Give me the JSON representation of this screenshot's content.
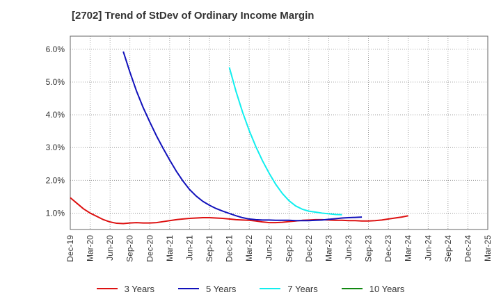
{
  "title": "[2702]  Trend of StDev of Ordinary Income Margin",
  "chart_data": {
    "type": "line",
    "title": "[2702]  Trend of StDev of Ordinary Income Margin",
    "xlabel": "",
    "ylabel": "",
    "x_ticks": [
      "Dec-19",
      "Mar-20",
      "Jun-20",
      "Sep-20",
      "Dec-20",
      "Mar-21",
      "Jun-21",
      "Sep-21",
      "Dec-21",
      "Mar-22",
      "Jun-22",
      "Sep-22",
      "Dec-22",
      "Mar-23",
      "Jun-23",
      "Sep-23",
      "Dec-23",
      "Mar-24",
      "Jun-24",
      "Sep-24",
      "Dec-24",
      "Mar-25"
    ],
    "y_ticks": [
      "1.0%",
      "2.0%",
      "3.0%",
      "4.0%",
      "5.0%",
      "6.0%"
    ],
    "y_tick_values": [
      1.0,
      2.0,
      3.0,
      4.0,
      5.0,
      6.0
    ],
    "ylim": [
      0.5,
      6.4
    ],
    "grid": true,
    "legend_position": "bottom",
    "series": [
      {
        "name": "3 Years",
        "color": "#dd1111",
        "points": [
          [
            0,
            1.47
          ],
          [
            1,
            1.3
          ],
          [
            2,
            1.13
          ],
          [
            3,
            1.0
          ],
          [
            4,
            0.9
          ],
          [
            5,
            0.8
          ],
          [
            6,
            0.73
          ],
          [
            7,
            0.69
          ],
          [
            8,
            0.68
          ],
          [
            9,
            0.7
          ],
          [
            10,
            0.71
          ],
          [
            11,
            0.7
          ],
          [
            12,
            0.7
          ],
          [
            13,
            0.71
          ],
          [
            14,
            0.74
          ],
          [
            15,
            0.77
          ],
          [
            16,
            0.8
          ],
          [
            17,
            0.82
          ],
          [
            18,
            0.84
          ],
          [
            19,
            0.85
          ],
          [
            20,
            0.86
          ],
          [
            21,
            0.86
          ],
          [
            22,
            0.85
          ],
          [
            23,
            0.84
          ],
          [
            24,
            0.82
          ],
          [
            25,
            0.8
          ],
          [
            26,
            0.79
          ],
          [
            27,
            0.78
          ],
          [
            28,
            0.76
          ],
          [
            29,
            0.73
          ],
          [
            30,
            0.71
          ],
          [
            31,
            0.71
          ],
          [
            32,
            0.72
          ],
          [
            33,
            0.74
          ],
          [
            34,
            0.76
          ],
          [
            35,
            0.78
          ],
          [
            36,
            0.79
          ],
          [
            37,
            0.8
          ],
          [
            38,
            0.8
          ],
          [
            39,
            0.79
          ],
          [
            40,
            0.78
          ],
          [
            41,
            0.78
          ],
          [
            42,
            0.77
          ],
          [
            43,
            0.77
          ],
          [
            44,
            0.76
          ],
          [
            45,
            0.76
          ],
          [
            46,
            0.77
          ],
          [
            47,
            0.79
          ],
          [
            48,
            0.82
          ],
          [
            49,
            0.85
          ],
          [
            50,
            0.88
          ],
          [
            51,
            0.92
          ]
        ]
      },
      {
        "name": "5 Years",
        "color": "#1111bb",
        "points": [
          [
            8,
            5.93
          ],
          [
            9,
            5.3
          ],
          [
            10,
            4.72
          ],
          [
            11,
            4.22
          ],
          [
            12,
            3.78
          ],
          [
            13,
            3.36
          ],
          [
            14,
            2.98
          ],
          [
            15,
            2.62
          ],
          [
            16,
            2.28
          ],
          [
            17,
            1.98
          ],
          [
            18,
            1.72
          ],
          [
            19,
            1.52
          ],
          [
            20,
            1.36
          ],
          [
            21,
            1.24
          ],
          [
            22,
            1.14
          ],
          [
            23,
            1.06
          ],
          [
            24,
            0.99
          ],
          [
            25,
            0.92
          ],
          [
            26,
            0.86
          ],
          [
            27,
            0.82
          ],
          [
            28,
            0.8
          ],
          [
            29,
            0.79
          ],
          [
            30,
            0.79
          ],
          [
            31,
            0.78
          ],
          [
            32,
            0.78
          ],
          [
            33,
            0.78
          ],
          [
            34,
            0.77
          ],
          [
            35,
            0.77
          ],
          [
            36,
            0.77
          ],
          [
            37,
            0.78
          ],
          [
            38,
            0.79
          ],
          [
            39,
            0.81
          ],
          [
            40,
            0.83
          ],
          [
            41,
            0.85
          ],
          [
            42,
            0.86
          ],
          [
            43,
            0.87
          ],
          [
            44,
            0.88
          ]
        ]
      },
      {
        "name": "7 Years",
        "color": "#11eeee",
        "points": [
          [
            24,
            5.45
          ],
          [
            25,
            4.72
          ],
          [
            26,
            4.08
          ],
          [
            27,
            3.52
          ],
          [
            28,
            3.03
          ],
          [
            29,
            2.6
          ],
          [
            30,
            2.22
          ],
          [
            31,
            1.88
          ],
          [
            32,
            1.6
          ],
          [
            33,
            1.38
          ],
          [
            34,
            1.22
          ],
          [
            35,
            1.12
          ],
          [
            36,
            1.06
          ],
          [
            37,
            1.03
          ],
          [
            38,
            1.0
          ],
          [
            39,
            0.98
          ],
          [
            40,
            0.96
          ],
          [
            41,
            0.95
          ]
        ]
      },
      {
        "name": "10 Years",
        "color": "#118811",
        "points": []
      }
    ]
  }
}
